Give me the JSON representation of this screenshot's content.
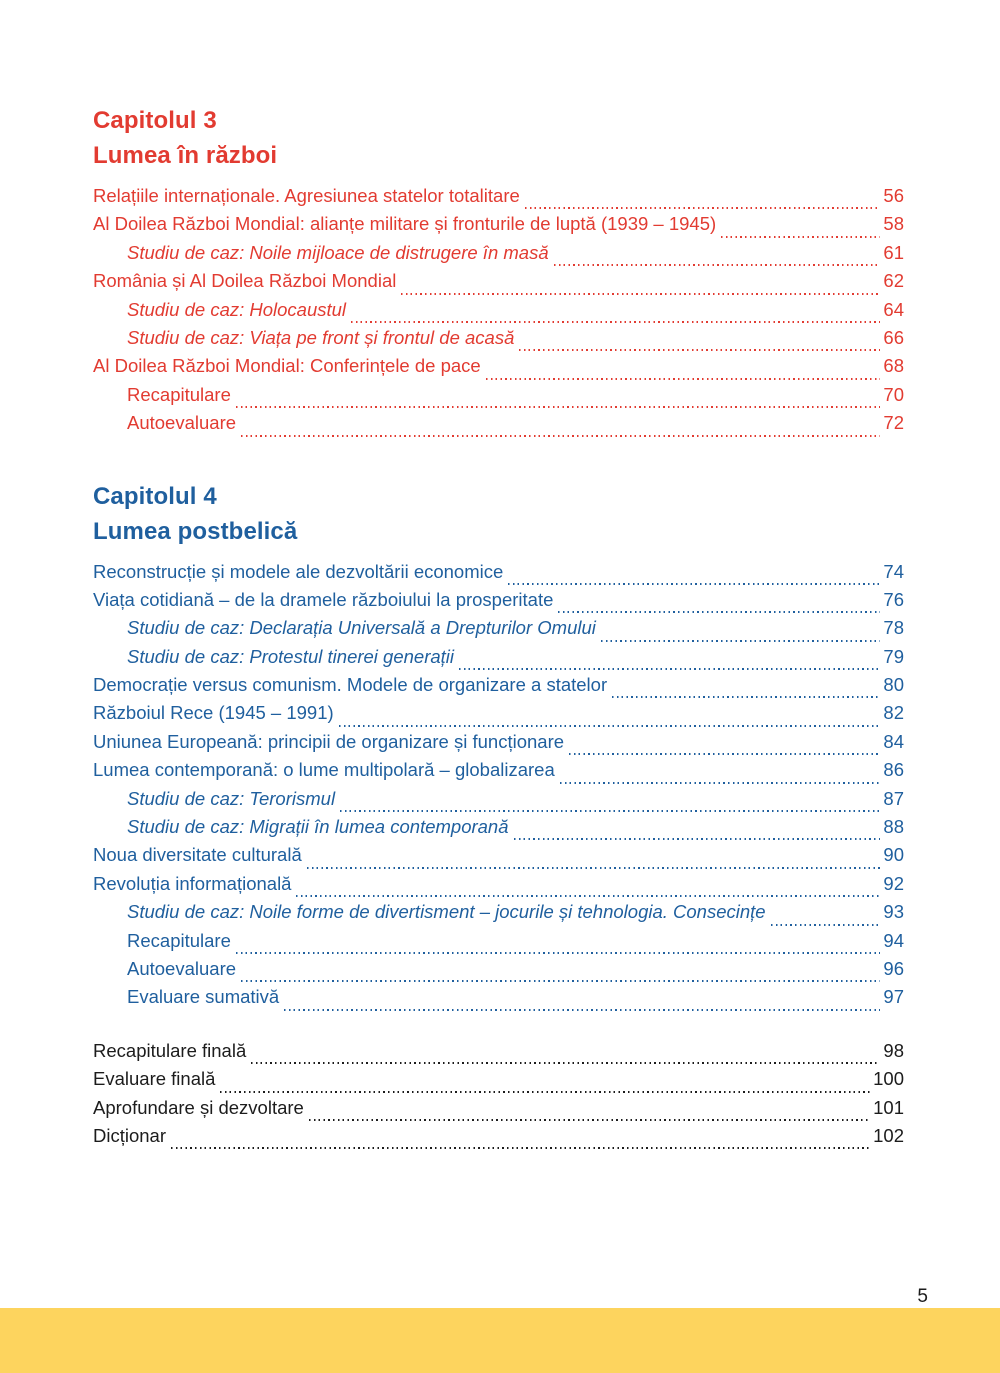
{
  "colors": {
    "chapter3_accent": "#e23b31",
    "chapter4_accent": "#1f5f9e",
    "back_matter_text": "#1c1c1c",
    "footer_bar": "#fdd45e",
    "folio_text": "#1c1c1c"
  },
  "chapters": [
    {
      "number": "Capitolul 3",
      "title": "Lumea în război",
      "entries": [
        {
          "label": "Relațiile internaționale. Agresiunea statelor totalitare",
          "page": "56",
          "indent": false,
          "italic": false
        },
        {
          "label": "Al Doilea Război Mondial: alianțe militare și fronturile de luptă (1939 – 1945)",
          "page": "58",
          "indent": false,
          "italic": false
        },
        {
          "label": "Studiu de caz: Noile mijloace de distrugere în masă",
          "page": "61",
          "indent": true,
          "italic": true
        },
        {
          "label": "România și Al Doilea Război Mondial",
          "page": "62",
          "indent": false,
          "italic": false
        },
        {
          "label": "Studiu de caz: Holocaustul",
          "page": "64",
          "indent": true,
          "italic": true
        },
        {
          "label": "Studiu de caz: Viața pe front și frontul de acasă",
          "page": "66",
          "indent": true,
          "italic": true
        },
        {
          "label": "Al Doilea Război Mondial: Conferințele de pace",
          "page": "68",
          "indent": false,
          "italic": false
        },
        {
          "label": "Recapitulare",
          "page": "70",
          "indent": true,
          "italic": false
        },
        {
          "label": "Autoevaluare",
          "page": "72",
          "indent": true,
          "italic": false
        }
      ]
    },
    {
      "number": "Capitolul 4",
      "title": "Lumea postbelică",
      "entries": [
        {
          "label": "Reconstrucție și modele ale dezvoltării economice",
          "page": "74",
          "indent": false,
          "italic": false
        },
        {
          "label": "Viața cotidiană – de la dramele războiului la prosperitate",
          "page": "76",
          "indent": false,
          "italic": false
        },
        {
          "label": "Studiu de caz: Declarația Universală a Drepturilor Omului",
          "page": "78",
          "indent": true,
          "italic": true
        },
        {
          "label": "Studiu de caz: Protestul tinerei generații",
          "page": "79",
          "indent": true,
          "italic": true
        },
        {
          "label": "Democrație versus comunism. Modele de organizare a statelor",
          "page": "80",
          "indent": false,
          "italic": false
        },
        {
          "label": "Războiul Rece (1945 – 1991)",
          "page": "82",
          "indent": false,
          "italic": false
        },
        {
          "label": "Uniunea Europeană: principii de organizare și funcționare",
          "page": "84",
          "indent": false,
          "italic": false
        },
        {
          "label": "Lumea contemporană: o lume multipolară – globalizarea",
          "page": "86",
          "indent": false,
          "italic": false
        },
        {
          "label": "Studiu de caz: Terorismul",
          "page": "87",
          "indent": true,
          "italic": true
        },
        {
          "label": "Studiu de caz: Migrații în lumea contemporană",
          "page": "88",
          "indent": true,
          "italic": true
        },
        {
          "label": "Noua diversitate culturală",
          "page": "90",
          "indent": false,
          "italic": false
        },
        {
          "label": "Revoluția informațională",
          "page": "92",
          "indent": false,
          "italic": false
        },
        {
          "label": "Studiu de caz: Noile forme de divertisment – jocurile și tehnologia. Consecințe",
          "page": "93",
          "indent": true,
          "italic": true
        },
        {
          "label": "Recapitulare",
          "page": "94",
          "indent": true,
          "italic": false
        },
        {
          "label": "Autoevaluare",
          "page": "96",
          "indent": true,
          "italic": false
        },
        {
          "label": "Evaluare sumativă",
          "page": "97",
          "indent": true,
          "italic": false
        }
      ]
    }
  ],
  "back_matter": {
    "entries": [
      {
        "label": "Recapitulare finală",
        "page": "98",
        "indent": false,
        "italic": false
      },
      {
        "label": "Evaluare finală",
        "page": "100",
        "indent": false,
        "italic": false
      },
      {
        "label": "Aprofundare și dezvoltare",
        "page": "101",
        "indent": false,
        "italic": false
      },
      {
        "label": "Dicționar",
        "page": "102",
        "indent": false,
        "italic": false
      }
    ]
  },
  "footer": {
    "page_number": "5"
  }
}
